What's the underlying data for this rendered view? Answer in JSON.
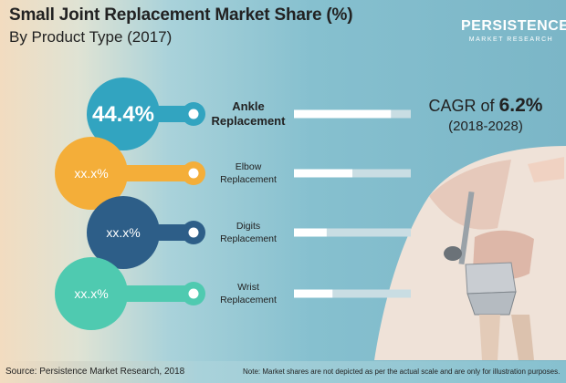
{
  "header": {
    "title": "Small Joint Replacement Market Share (%)",
    "subtitle": "By Product Type (2017)"
  },
  "logo": {
    "line1": "PERSISTENCE",
    "line2": "MARKET RESEARCH"
  },
  "cagr": {
    "prefix": "CAGR of",
    "value": "6.2%",
    "period": "(2018-2028)"
  },
  "chart_data": {
    "type": "bar",
    "title": "Small Joint Replacement Market Share (%)",
    "subtitle": "By Product Type (2017)",
    "unit": "%",
    "categories": [
      "Ankle Replacement",
      "Elbow Replacement",
      "Digits Replacement",
      "Wrist Replacement"
    ],
    "category_lines": [
      [
        "Ankle",
        "Replacement"
      ],
      [
        "Elbow",
        "Replacement"
      ],
      [
        "Digits",
        "Replacement"
      ],
      [
        "Wrist",
        "Replacement"
      ]
    ],
    "value_labels": [
      "44.4%",
      "xx.x%",
      "xx.x%",
      "xx.x%"
    ],
    "values": [
      44.4,
      null,
      null,
      null
    ],
    "bar_fill_fraction": [
      0.83,
      0.5,
      0.28,
      0.33
    ],
    "colors": [
      "#32a4c0",
      "#f4ae39",
      "#2d5e88",
      "#4fcab0"
    ]
  },
  "footer": {
    "source": "Source: Persistence Market Research, 2018",
    "note": "Note: Market shares are not depicted as per the actual scale and are only for illustration purposes."
  }
}
